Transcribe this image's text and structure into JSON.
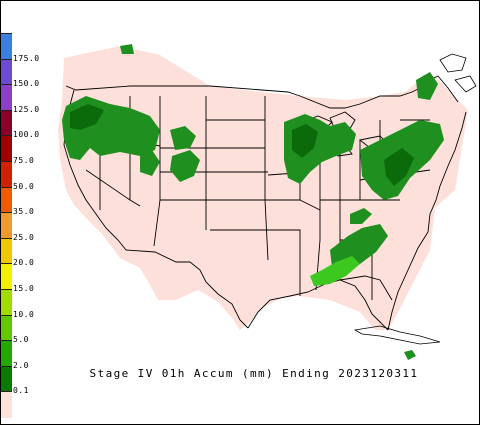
{
  "caption": {
    "text": "Stage IV 01h Accum (mm) Ending 2023120311"
  },
  "legend": {
    "items": [
      {
        "label": "175.0",
        "color": "#3c7fe0"
      },
      {
        "label": "150.0",
        "color": "#6a4bd2"
      },
      {
        "label": "125.0",
        "color": "#8c3fc8"
      },
      {
        "label": "100.0",
        "color": "#8a0028"
      },
      {
        "label": "75.0",
        "color": "#a00000"
      },
      {
        "label": "50.0",
        "color": "#d22000"
      },
      {
        "label": "35.0",
        "color": "#f05a00"
      },
      {
        "label": "25.0",
        "color": "#f09a30"
      },
      {
        "label": "20.0",
        "color": "#f0c800"
      },
      {
        "label": "15.0",
        "color": "#f0f000"
      },
      {
        "label": "10.0",
        "color": "#a0dc00"
      },
      {
        "label": "5.0",
        "color": "#64c800"
      },
      {
        "label": "2.0",
        "color": "#22a800"
      },
      {
        "label": "0.1",
        "color": "#0a7a00"
      },
      {
        "label": "",
        "color": "#fde2dc"
      }
    ]
  },
  "colors": {
    "land": "#fde0d9",
    "precip_light": "#1f8f1f",
    "precip_dark": "#0b6b0b",
    "precip_bright": "#3cc81e",
    "border": "#000000"
  }
}
